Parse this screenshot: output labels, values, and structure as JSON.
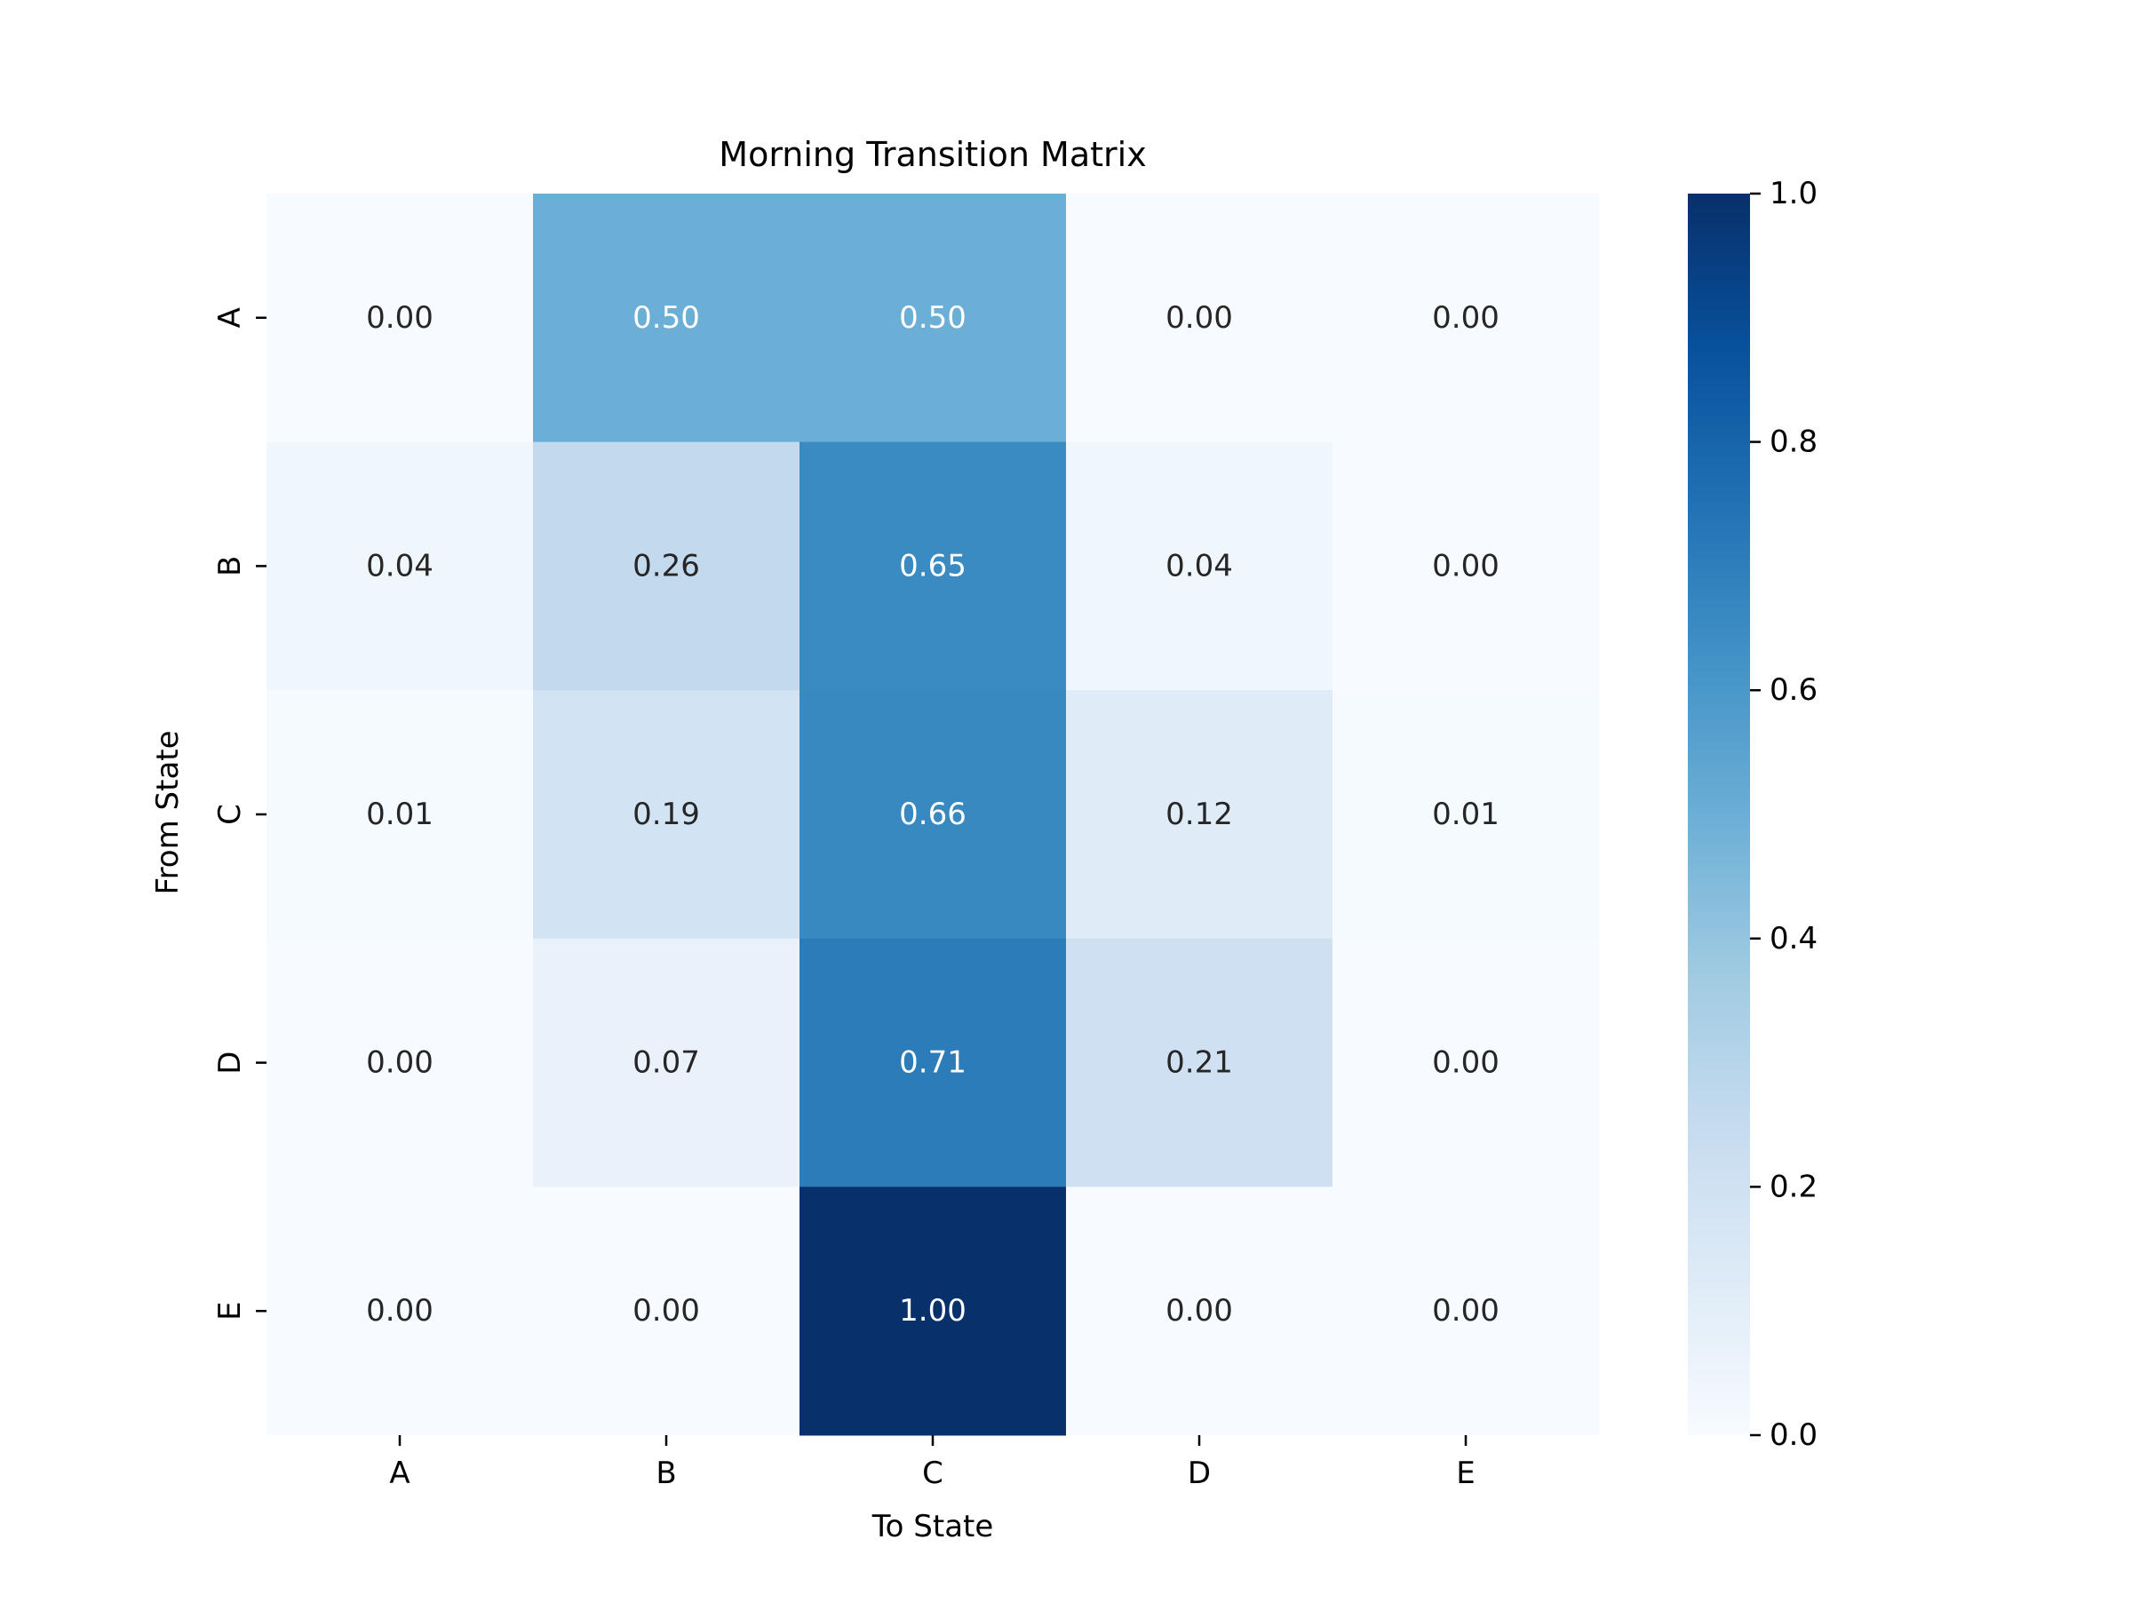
{
  "chart_data": {
    "type": "heatmap",
    "title": "Morning Transition Matrix",
    "xlabel": "To State",
    "ylabel": "From State",
    "x_categories": [
      "A",
      "B",
      "C",
      "D",
      "E"
    ],
    "y_categories": [
      "A",
      "B",
      "C",
      "D",
      "E"
    ],
    "values": [
      [
        0.0,
        0.5,
        0.5,
        0.0,
        0.0
      ],
      [
        0.04,
        0.26,
        0.65,
        0.04,
        0.0
      ],
      [
        0.01,
        0.19,
        0.66,
        0.12,
        0.01
      ],
      [
        0.0,
        0.07,
        0.71,
        0.21,
        0.0
      ],
      [
        0.0,
        0.0,
        1.0,
        0.0,
        0.0
      ]
    ],
    "cell_labels": [
      [
        "0.00",
        "0.50",
        "0.50",
        "0.00",
        "0.00"
      ],
      [
        "0.04",
        "0.26",
        "0.65",
        "0.04",
        "0.00"
      ],
      [
        "0.01",
        "0.19",
        "0.66",
        "0.12",
        "0.01"
      ],
      [
        "0.00",
        "0.07",
        "0.71",
        "0.21",
        "0.00"
      ],
      [
        "0.00",
        "0.00",
        "1.00",
        "0.00",
        "0.00"
      ]
    ],
    "colormap": "Blues",
    "vmin": 0.0,
    "vmax": 1.0,
    "colorbar_ticks": [
      "0.0",
      "0.2",
      "0.4",
      "0.6",
      "0.8",
      "1.0"
    ],
    "colorbar_tick_values": [
      0.0,
      0.2,
      0.4,
      0.6,
      0.8,
      1.0
    ]
  },
  "colors": {
    "blues_scale": [
      "#f7fbff",
      "#deebf7",
      "#c6dbef",
      "#9ecae1",
      "#6baed6",
      "#4292c6",
      "#2171b5",
      "#08519c",
      "#08306b"
    ],
    "dark_text": "#262626",
    "light_text": "#ffffff"
  }
}
